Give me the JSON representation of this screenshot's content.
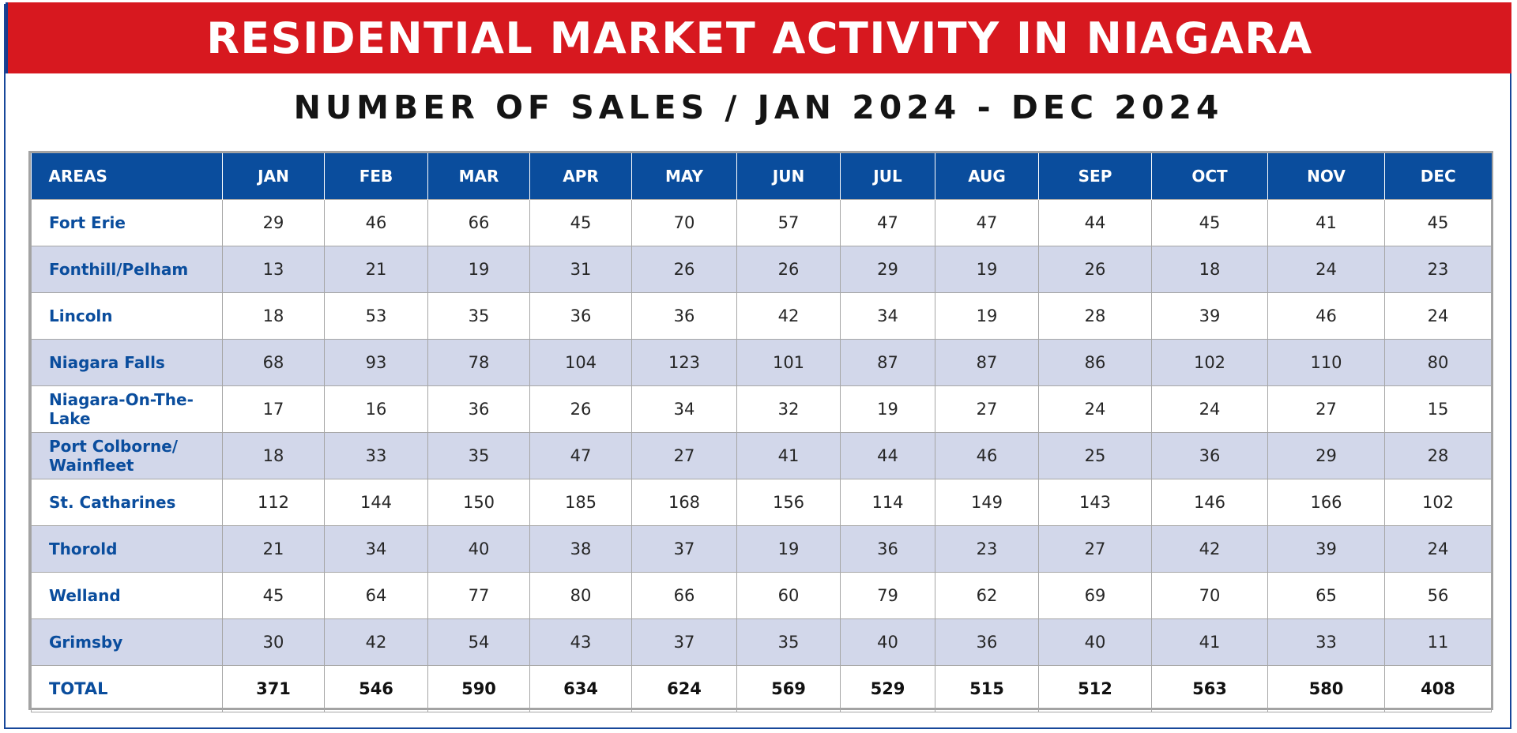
{
  "title": "RESIDENTIAL MARKET ACTIVITY IN NIAGARA",
  "subtitle": "NUMBER OF SALES / JAN 2024 - DEC 2024",
  "colors": {
    "banner": "#d7181f",
    "header": "#0a4d9d",
    "alt_row": "#d2d7ea",
    "area_text": "#0a4d9d"
  },
  "chart_data": {
    "type": "table",
    "title": "RESIDENTIAL MARKET ACTIVITY IN NIAGARA",
    "subtitle": "NUMBER OF SALES / JAN 2024 - DEC 2024",
    "columns": [
      "AREAS",
      "JAN",
      "FEB",
      "MAR",
      "APR",
      "MAY",
      "JUN",
      "JUL",
      "AUG",
      "SEP",
      "OCT",
      "NOV",
      "DEC"
    ],
    "rows": [
      {
        "area": "Fort Erie",
        "values": [
          29,
          46,
          66,
          45,
          70,
          57,
          47,
          47,
          44,
          45,
          41,
          45
        ]
      },
      {
        "area": "Fonthill/Pelham",
        "values": [
          13,
          21,
          19,
          31,
          26,
          26,
          29,
          19,
          26,
          18,
          24,
          23
        ]
      },
      {
        "area": "Lincoln",
        "values": [
          18,
          53,
          35,
          36,
          36,
          42,
          34,
          19,
          28,
          39,
          46,
          24
        ]
      },
      {
        "area": "Niagara Falls",
        "values": [
          68,
          93,
          78,
          104,
          123,
          101,
          87,
          87,
          86,
          102,
          110,
          80
        ]
      },
      {
        "area": "Niagara-On-The-Lake",
        "values": [
          17,
          16,
          36,
          26,
          34,
          32,
          19,
          27,
          24,
          24,
          27,
          15
        ]
      },
      {
        "area": "Port Colborne/ Wainfleet",
        "values": [
          18,
          33,
          35,
          47,
          27,
          41,
          44,
          46,
          25,
          36,
          29,
          28
        ]
      },
      {
        "area": "St. Catharines",
        "values": [
          112,
          144,
          150,
          185,
          168,
          156,
          114,
          149,
          143,
          146,
          166,
          102
        ]
      },
      {
        "area": "Thorold",
        "values": [
          21,
          34,
          40,
          38,
          37,
          19,
          36,
          23,
          27,
          42,
          39,
          24
        ]
      },
      {
        "area": "Welland",
        "values": [
          45,
          64,
          77,
          80,
          66,
          60,
          79,
          62,
          69,
          70,
          65,
          56
        ]
      },
      {
        "area": "Grimsby",
        "values": [
          30,
          42,
          54,
          43,
          37,
          35,
          40,
          36,
          40,
          41,
          33,
          11
        ]
      }
    ],
    "total": {
      "area": "TOTAL",
      "values": [
        371,
        546,
        590,
        634,
        624,
        569,
        529,
        515,
        512,
        563,
        580,
        408
      ]
    }
  }
}
